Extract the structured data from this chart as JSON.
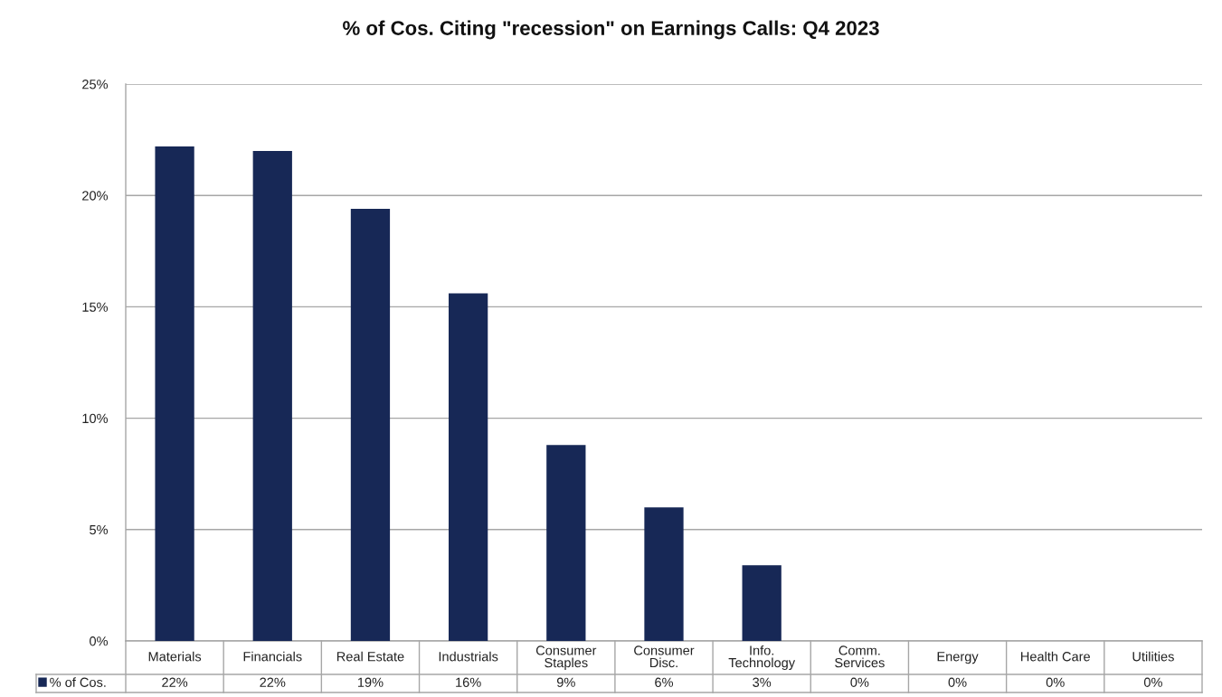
{
  "chart_data": {
    "type": "bar",
    "title": "% of Cos. Citing \"recession\" on Earnings Calls: Q4 2023",
    "categories": [
      "Materials",
      "Financials",
      "Real Estate",
      "Industrials",
      "Consumer\nStaples",
      "Consumer\nDisc.",
      "Info.\nTechnology",
      "Comm.\nServices",
      "Energy",
      "Health Care",
      "Utilities"
    ],
    "series": [
      {
        "name": "% of Cos.",
        "color": "#172856",
        "values": [
          22.2,
          22.0,
          19.4,
          15.6,
          8.8,
          6.0,
          3.4,
          0,
          0,
          0,
          0
        ],
        "value_labels": [
          "22%",
          "22%",
          "19%",
          "16%",
          "9%",
          "6%",
          "3%",
          "0%",
          "0%",
          "0%",
          "0%"
        ]
      }
    ],
    "ylim": [
      0,
      25
    ],
    "yticks": [
      {
        "value": 0,
        "label": "0%"
      },
      {
        "value": 5,
        "label": "5%"
      },
      {
        "value": 10,
        "label": "10%"
      },
      {
        "value": 15,
        "label": "15%"
      },
      {
        "value": 20,
        "label": "20%"
      },
      {
        "value": 25,
        "label": "25%"
      }
    ],
    "grid": "y",
    "legend": "bottom"
  }
}
